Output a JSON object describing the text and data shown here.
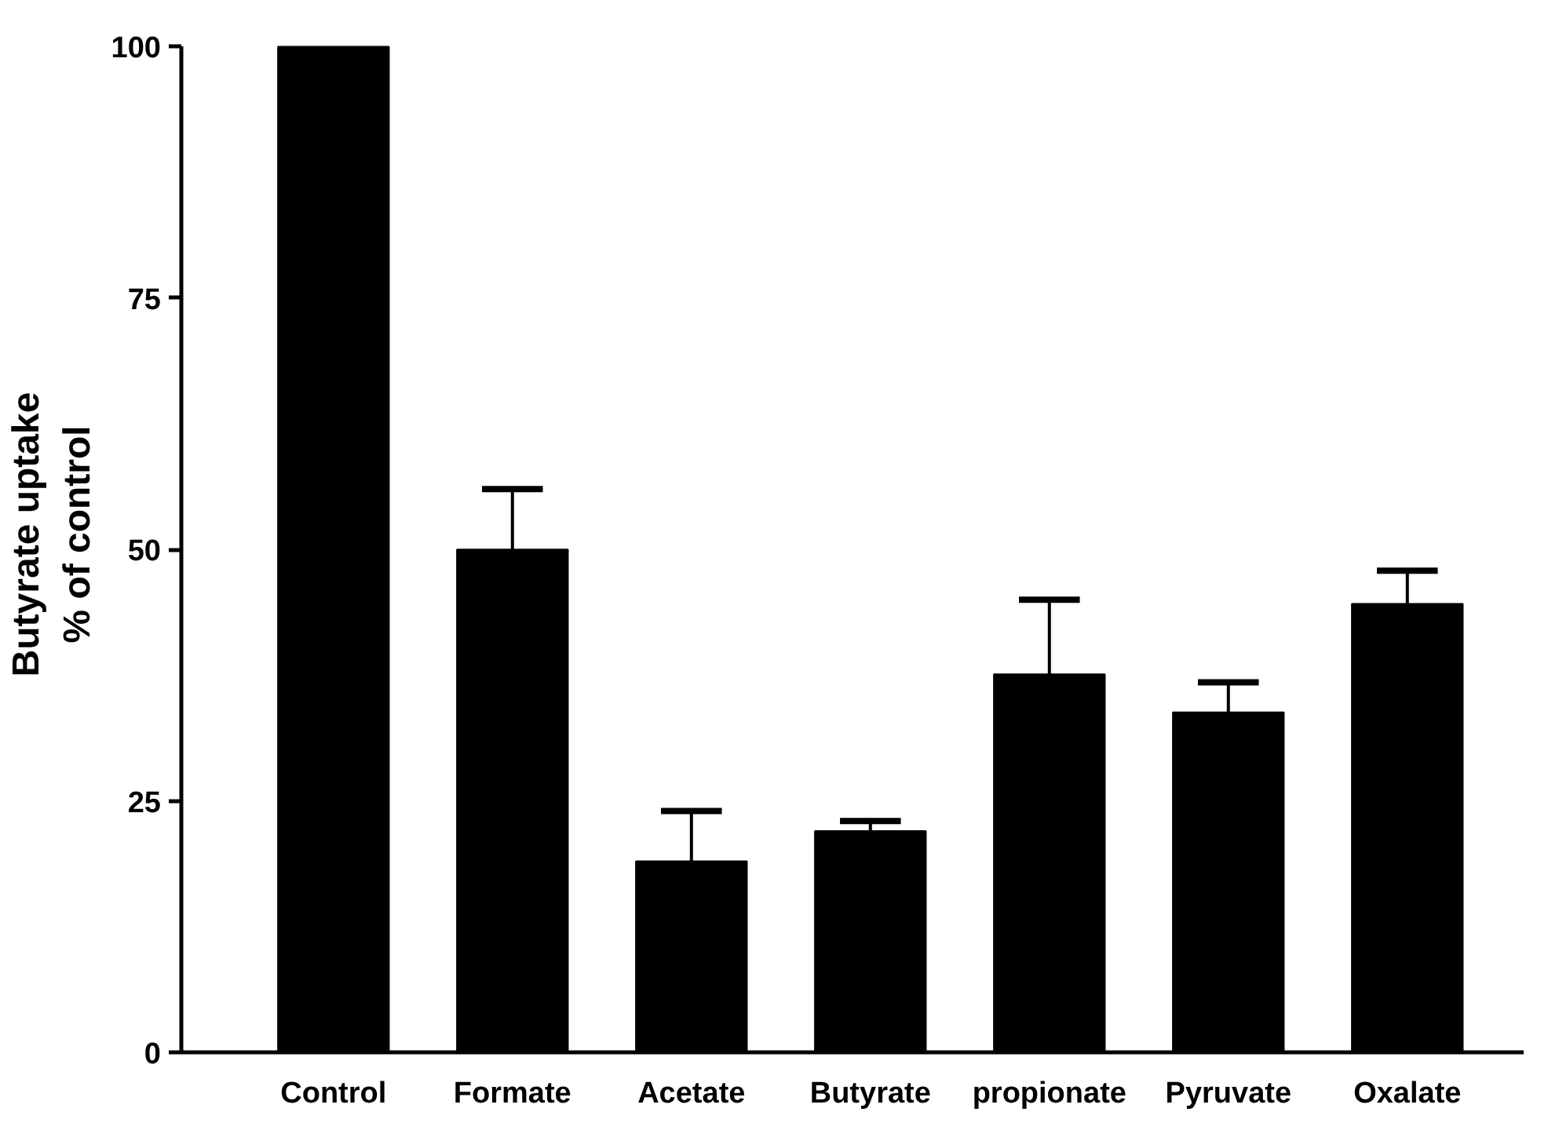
{
  "chart_data": {
    "type": "bar",
    "ylabel": "Butyrate uptake\n% of control",
    "categories": [
      "Control",
      "Formate",
      "Acetate",
      "Butyrate",
      "propionate",
      "Pyruvate",
      "Oxalate"
    ],
    "values": [
      100,
      50,
      19,
      22,
      37.6,
      33.8,
      44.6
    ],
    "errors": [
      null,
      [
        50,
        56
      ],
      [
        19,
        24
      ],
      [
        22,
        23
      ],
      [
        37.6,
        45
      ],
      [
        33.8,
        36.8
      ],
      [
        44.6,
        47.9
      ]
    ],
    "color": "#000000",
    "ylim": [
      0,
      100
    ],
    "yticks": [
      0,
      25,
      50,
      75,
      100
    ],
    "grid": false
  }
}
